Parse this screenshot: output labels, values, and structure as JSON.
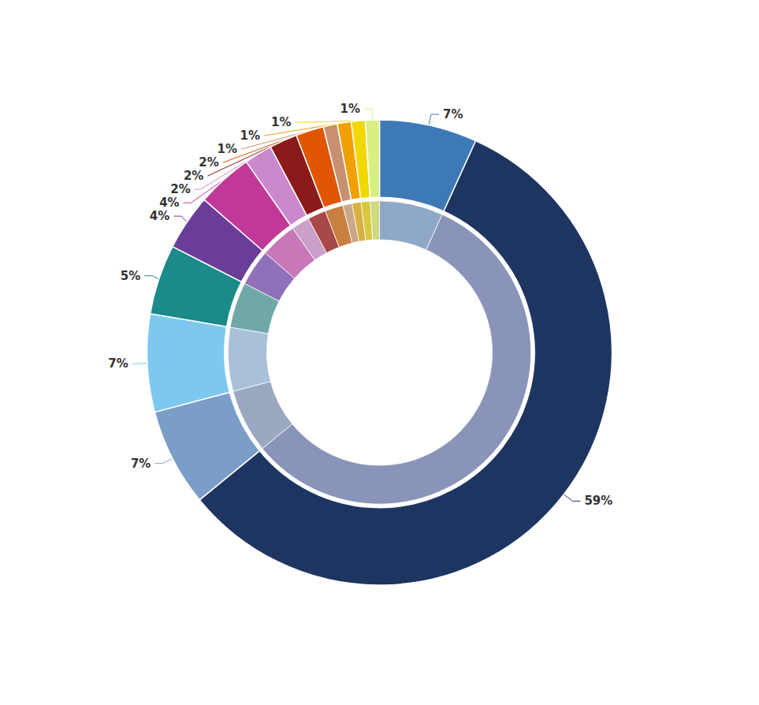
{
  "chart_data": {
    "type": "pie",
    "data_labels": true,
    "series": [
      {
        "values": [
          7,
          59,
          7,
          7,
          5,
          4,
          4,
          2,
          2,
          2,
          1,
          1,
          1,
          1
        ],
        "value_labels": [
          "7%",
          "59%",
          "7%",
          "7%",
          "5%",
          "4%",
          "4%",
          "2%",
          "2%",
          "2%",
          "1%",
          "1%",
          "1%",
          "1%"
        ],
        "colors": [
          "#3d7ab5",
          "#1e3561",
          "#7b9ec8",
          "#7ec8f0",
          "#1a8a8a",
          "#6b3d9a",
          "#c03898",
          "#cc88cc",
          "#8b1a1a",
          "#e05500",
          "#c89070",
          "#f0a000",
          "#f0d800",
          "#d8f080"
        ]
      },
      {
        "values": [
          7,
          59,
          7,
          7,
          5,
          4,
          4,
          2,
          2,
          2,
          1,
          1,
          1,
          1
        ],
        "colors": [
          "#8fa8c8",
          "#8a94b8",
          "#9aa8c0",
          "#a8c0d8",
          "#70a8a8",
          "#9070b8",
          "#c878b8",
          "#c8a0c8",
          "#a84848",
          "#c88040",
          "#c8a888",
          "#d8b040",
          "#d8c840",
          "#d0d880"
        ]
      }
    ]
  }
}
